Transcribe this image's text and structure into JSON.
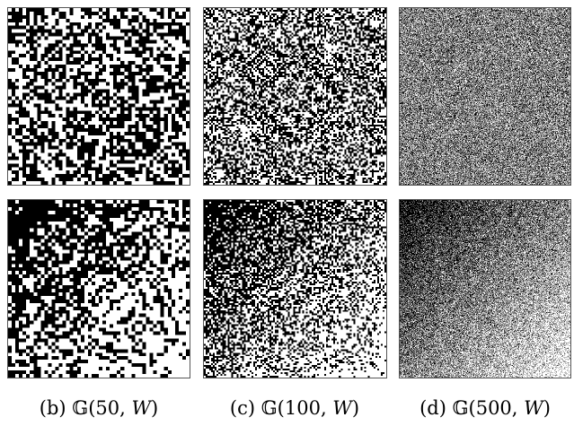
{
  "figure": {
    "columns": [
      {
        "id": "b",
        "caption": "(b) 𝔾(50, 𝑊)",
        "grid_size": 50
      },
      {
        "id": "c",
        "caption": "(c) 𝔾(100, 𝑊)",
        "grid_size": 100
      },
      {
        "id": "d",
        "caption": "(d) 𝔾(500, 𝑊)",
        "grid_size": 500
      }
    ],
    "rows": [
      {
        "id": "top",
        "pattern": "random"
      },
      {
        "id": "bottom",
        "pattern": "sorted"
      }
    ],
    "colors": {
      "filled": "#000000",
      "empty": "#ffffff",
      "frame": "#555555"
    }
  }
}
